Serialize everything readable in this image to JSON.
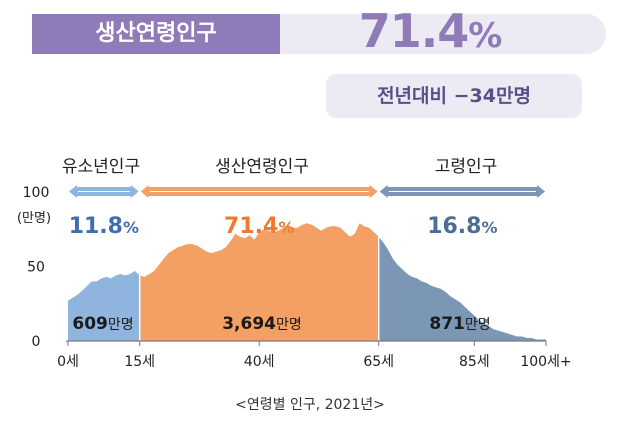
{
  "header": {
    "label": "생산연령인구",
    "value": "71.4",
    "value_unit": "%",
    "change_text": "전년대비 −34만명"
  },
  "chart_data": {
    "type": "area",
    "groups": [
      {
        "name": "유소년인구",
        "share_pct": "11.8%",
        "total": "609만명",
        "range": [
          0,
          15
        ],
        "color": "#8fb4de"
      },
      {
        "name": "생산연령인구",
        "share_pct": "71.4%",
        "total": "3,694만명",
        "range": [
          15,
          65
        ],
        "color": "#f4a064"
      },
      {
        "name": "고령인구",
        "share_pct": "16.8%",
        "total": "871만명",
        "range": [
          65,
          100
        ],
        "color": "#7c96b6"
      }
    ],
    "y_ticks": [
      "100",
      "50",
      "0"
    ],
    "y_unit": "(만명)",
    "ylim": [
      0,
      100
    ],
    "x_ticks": [
      "0세",
      "15세",
      "40세",
      "65세",
      "85세",
      "100세+"
    ],
    "x_tick_values": [
      0,
      15,
      40,
      65,
      85,
      100
    ],
    "xlim": [
      0,
      100
    ],
    "x": [
      0,
      1,
      2,
      3,
      4,
      5,
      6,
      7,
      8,
      9,
      10,
      11,
      12,
      13,
      14,
      15,
      16,
      17,
      18,
      19,
      20,
      21,
      22,
      23,
      24,
      25,
      26,
      27,
      28,
      29,
      30,
      31,
      32,
      33,
      34,
      35,
      36,
      37,
      38,
      39,
      40,
      41,
      42,
      43,
      44,
      45,
      46,
      47,
      48,
      49,
      50,
      51,
      52,
      53,
      54,
      55,
      56,
      57,
      58,
      59,
      60,
      61,
      62,
      63,
      64,
      65,
      66,
      67,
      68,
      69,
      70,
      71,
      72,
      73,
      74,
      75,
      76,
      77,
      78,
      79,
      80,
      81,
      82,
      83,
      84,
      85,
      86,
      87,
      88,
      89,
      90,
      91,
      92,
      93,
      94,
      95,
      96,
      97,
      98,
      99,
      100
    ],
    "values": [
      27,
      29,
      31,
      34,
      37,
      40,
      40,
      42,
      43,
      42,
      44,
      45,
      44,
      45,
      47,
      44,
      43,
      45,
      47,
      51,
      55,
      59,
      61,
      63,
      64,
      65,
      65,
      64,
      62,
      60,
      59,
      60,
      61,
      63,
      67,
      72,
      70,
      69,
      71,
      68,
      73,
      75,
      74,
      73,
      74,
      76,
      78,
      76,
      76,
      78,
      79,
      78,
      76,
      74,
      76,
      77,
      77,
      76,
      73,
      70,
      72,
      79,
      77,
      76,
      73,
      70,
      66,
      61,
      55,
      51,
      48,
      45,
      43,
      42,
      40,
      39,
      37,
      36,
      35,
      33,
      30,
      28,
      26,
      23,
      20,
      17,
      14,
      12,
      10,
      8,
      7,
      6,
      5,
      4,
      3,
      3,
      2,
      2,
      1,
      1,
      1
    ],
    "legend": "top"
  },
  "caption": "<연령별 인구, 2021년>",
  "colors": {
    "accent": "#8f7bb7",
    "child": "#8fb4de",
    "working": "#f4a064",
    "elderly": "#7c96b6"
  }
}
